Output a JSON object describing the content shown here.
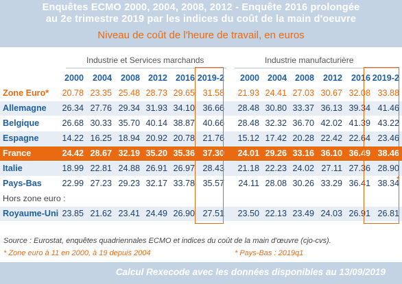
{
  "header": {
    "title_line1": "Enquêtes ECMO 2000, 2004, 2008, 2012 -  Enquête 2016 prolongée",
    "title_line2": "au 2e trimestre 2019 par les indices du coût de la main d'oeuvre",
    "subtitle": "Niveau de coût de l'heure de travail, en euros"
  },
  "chart_data": {
    "type": "table",
    "groups": [
      {
        "name": "Industrie et Services marchands",
        "columns": [
          "2000",
          "2004",
          "2008",
          "2012",
          "2016",
          "2019-2"
        ]
      },
      {
        "name": "Industrie manufacturière",
        "columns": [
          "2000",
          "2004",
          "2008",
          "2012",
          "2016",
          "2019-2"
        ]
      }
    ],
    "rows": [
      {
        "label": "Zone Euro*",
        "services": [
          "20.78",
          "23.35",
          "25.48",
          "28.73",
          "29.65",
          "31.58"
        ],
        "manufacturing": [
          "21.93",
          "24.41",
          "27.03",
          "30.67",
          "32.08",
          "33.88"
        ]
      },
      {
        "label": "Allemagne",
        "services": [
          "26.34",
          "27.76",
          "29.34",
          "31.93",
          "34.10",
          "36.66"
        ],
        "manufacturing": [
          "28.48",
          "30.80",
          "33.37",
          "36.13",
          "39.34",
          "41.46"
        ]
      },
      {
        "label": "Belgique",
        "services": [
          "26.68",
          "30.33",
          "35.70",
          "40.14",
          "38.87",
          "40.66"
        ],
        "manufacturing": [
          "28.48",
          "32.32",
          "36.70",
          "42.02",
          "41.39",
          "43.22"
        ]
      },
      {
        "label": "Espagne",
        "services": [
          "14.22",
          "16.25",
          "18.94",
          "20.92",
          "20.78",
          "21.76"
        ],
        "manufacturing": [
          "15.12",
          "17.42",
          "20.28",
          "22.42",
          "22.64",
          "23.46"
        ]
      },
      {
        "label": "France",
        "services": [
          "24.42",
          "28.67",
          "32.19",
          "35.20",
          "35.36",
          "37.30"
        ],
        "manufacturing": [
          "24.01",
          "29.26",
          "33.16",
          "36.10",
          "36.49",
          "38.46"
        ]
      },
      {
        "label": "Italie",
        "services": [
          "18.99",
          "22.81",
          "24.88",
          "26.91",
          "26.97",
          "28.43"
        ],
        "manufacturing": [
          "21.18",
          "22.23",
          "24.02",
          "27.11",
          "27.36",
          "28.90"
        ]
      },
      {
        "label": "Pays-Bas",
        "services": [
          "22.99",
          "27.23",
          "29.23",
          "32.17",
          "33.78",
          "35.57"
        ],
        "manufacturing": [
          "24.11",
          "28.08",
          "30.26",
          "33.29",
          "36.41",
          "38.34"
        ]
      },
      {
        "label": "Royaume-Uni",
        "services": [
          "23.85",
          "21.62",
          "23.41",
          "24.49",
          "26.90",
          "27.51"
        ],
        "manufacturing": [
          "23.50",
          "22.13",
          "23.49",
          "24.03",
          "26.91",
          "26.81"
        ]
      }
    ],
    "section_label": "Hors zone euro :",
    "side_marker": "*"
  },
  "notes": {
    "source": "Source : Eurostat, enquêtes quadriennales ECMO et indices du coût de la main d'œuvre (cjo-cvs).",
    "zone_note": "* Zone euro à 11 en 2000, à 19 depuis 2004",
    "nl_note": "* Pays-Bas : 2019q1",
    "footer": "Calcul Rexecode avec les données disponibles au 13/09/2019"
  },
  "colors": {
    "header_bg": "#c3d3e3",
    "accent": "#ea6a12",
    "label_blue": "#1f5fa0",
    "row_shade": "#e7edf4"
  }
}
